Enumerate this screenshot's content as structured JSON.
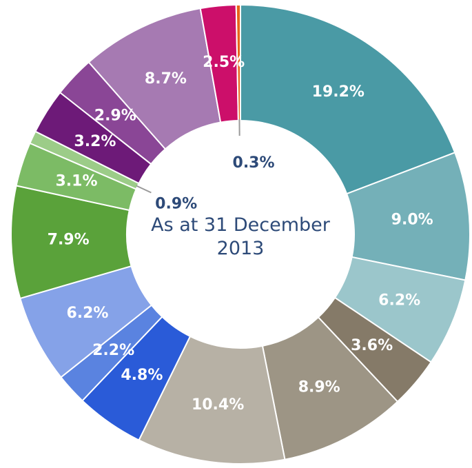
{
  "chart_data": {
    "type": "donut",
    "center_text": "As at 31 December 2013",
    "values": [
      19.2,
      9.0,
      6.2,
      3.6,
      8.9,
      10.4,
      4.8,
      2.2,
      6.2,
      7.9,
      3.1,
      0.9,
      3.2,
      2.9,
      8.7,
      2.5,
      0.3
    ],
    "value_labels": [
      "19.2%",
      "9.0%",
      "6.2%",
      "3.6%",
      "8.9%",
      "10.4%",
      "4.8%",
      "2.2%",
      "6.2%",
      "7.9%",
      "3.1%",
      "0.9%",
      "3.2%",
      "2.9%",
      "8.7%",
      "2.5%",
      "0.3%"
    ],
    "colors": [
      "#4a9aa5",
      "#74b0b8",
      "#9bc6cb",
      "#857a68",
      "#9d9585",
      "#b7b1a5",
      "#2a5bd8",
      "#5a83e0",
      "#85a2e8",
      "#5aa23a",
      "#7cbb65",
      "#9ccc88",
      "#6d1a78",
      "#8a4696",
      "#a67ab2",
      "#cc0f6a",
      "#e8641a"
    ]
  }
}
